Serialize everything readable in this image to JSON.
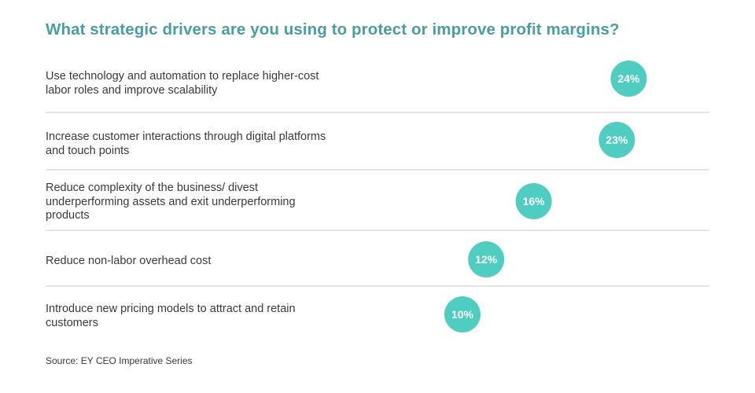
{
  "title": "What strategic drivers are you using to protect or improve profit margins?",
  "source": "Source: EY CEO Imperative Series",
  "colors": {
    "title": "#4a9ea2",
    "bar_start": "#3e9a93",
    "bar_end": "#57cfc0",
    "bubble": "#4ecdc0",
    "divider": "#c8c8c8"
  },
  "chart_data": {
    "type": "bar",
    "orientation": "horizontal",
    "title": "What strategic drivers are you using to protect or improve profit margins?",
    "categories": [
      "Use technology and automation to replace higher-cost labor roles and improve scalability",
      "Increase customer interactions through digital platforms and touch points",
      "Reduce complexity of the business/ divest underperforming assets and exit underperforming products",
      "Reduce non-labor overhead cost",
      "Introduce new pricing models to attract and retain customers"
    ],
    "values": [
      24,
      23,
      16,
      12,
      10
    ],
    "value_labels": [
      "24%",
      "23%",
      "16%",
      "12%",
      "10%"
    ],
    "unit": "%",
    "xlim": [
      0,
      25
    ],
    "grid": false,
    "legend": "none"
  },
  "rows": [
    {
      "label": "Use technology and automation to replace higher-cost labor roles and improve scalability",
      "value_label": "24%"
    },
    {
      "label": "Increase customer interactions through digital platforms and touch points",
      "value_label": "23%"
    },
    {
      "label": "Reduce complexity of the business/ divest underperforming assets and exit underperforming products",
      "value_label": "16%"
    },
    {
      "label": "Reduce non-labor overhead cost",
      "value_label": "12%"
    },
    {
      "label": "Introduce new pricing models to attract and retain customers",
      "value_label": "10%"
    }
  ]
}
